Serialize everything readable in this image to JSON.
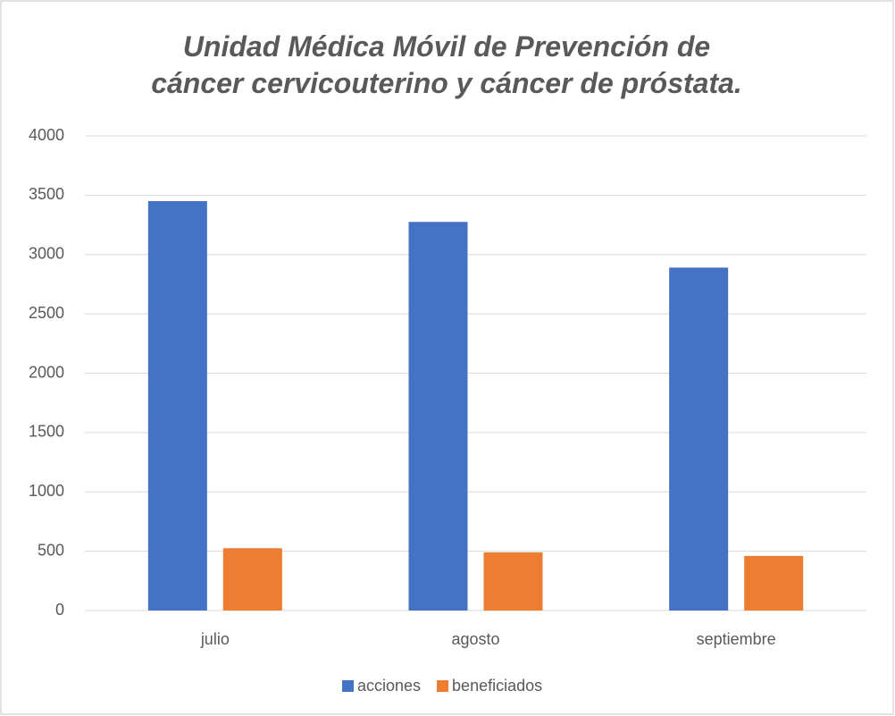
{
  "chart_data": {
    "type": "bar",
    "title": "Unidad Médica Móvil de Prevención de cáncer cervicouterino y cáncer de próstata.",
    "categories": [
      "julio",
      "agosto",
      "septiembre"
    ],
    "series": [
      {
        "name": "acciones",
        "color": "#4472c4",
        "values": [
          3450,
          3275,
          2890
        ]
      },
      {
        "name": "beneficiados",
        "color": "#ed7d31",
        "values": [
          525,
          490,
          460
        ]
      }
    ],
    "ylim": [
      0,
      4000
    ],
    "yticks": [
      0,
      500,
      1000,
      1500,
      2000,
      2500,
      3000,
      3500,
      4000
    ],
    "grid": true,
    "legend": "bottom"
  }
}
